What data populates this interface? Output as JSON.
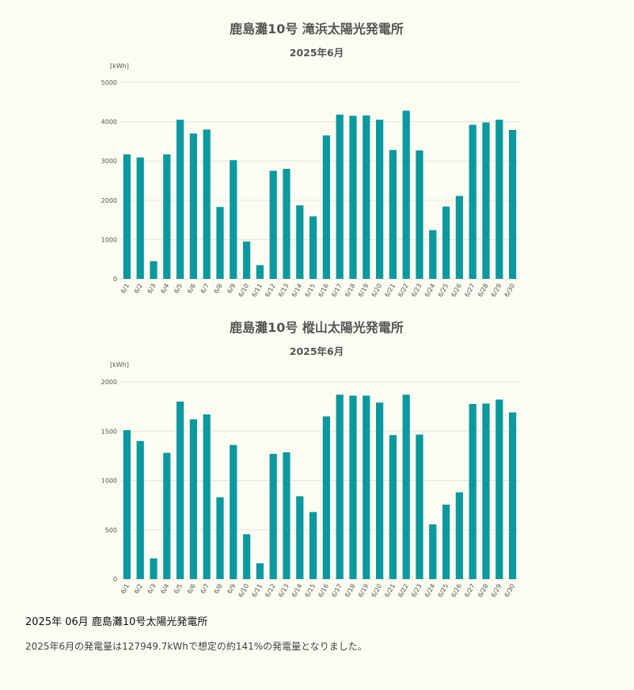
{
  "chart_data": [
    {
      "type": "bar",
      "title": "鹿島灘10号 滝浜太陽光発電所",
      "subtitle": "2025年6月",
      "unit_label": "[kWh]",
      "categories": [
        "6/1",
        "6/2",
        "6/3",
        "6/4",
        "6/5",
        "6/6",
        "6/7",
        "6/8",
        "6/9",
        "6/10",
        "6/11",
        "6/12",
        "6/13",
        "6/14",
        "6/15",
        "6/16",
        "6/17",
        "6/18",
        "6/19",
        "6/20",
        "6/21",
        "6/22",
        "6/23",
        "6/24",
        "6/25",
        "6/26",
        "6/27",
        "6/28",
        "6/29",
        "6/30"
      ],
      "values": [
        3170,
        3090,
        450,
        3170,
        4050,
        3700,
        3800,
        1830,
        3020,
        950,
        350,
        2750,
        2800,
        1870,
        1590,
        3650,
        4180,
        4150,
        4160,
        4050,
        3280,
        4280,
        3270,
        1240,
        1840,
        2110,
        3920,
        3980,
        4050,
        3790
      ],
      "ylim": [
        0,
        5000
      ],
      "yticks": [
        0,
        1000,
        2000,
        3000,
        4000,
        5000
      ],
      "grid": true,
      "color": "#0a999e"
    },
    {
      "type": "bar",
      "title": "鹿島灘10号 樅山太陽光発電所",
      "subtitle": "2025年6月",
      "unit_label": "[kWh]",
      "categories": [
        "6/1",
        "6/2",
        "6/3",
        "6/4",
        "6/5",
        "6/6",
        "6/7",
        "6/8",
        "6/9",
        "6/10",
        "6/11",
        "6/12",
        "6/13",
        "6/14",
        "6/15",
        "6/16",
        "6/17",
        "6/18",
        "6/19",
        "6/20",
        "6/21",
        "6/22",
        "6/23",
        "6/24",
        "6/25",
        "6/26",
        "6/27",
        "6/28",
        "6/29",
        "6/30"
      ],
      "values": [
        1510,
        1400,
        210,
        1280,
        1800,
        1620,
        1670,
        830,
        1360,
        455,
        160,
        1270,
        1285,
        840,
        680,
        1650,
        1870,
        1860,
        1860,
        1790,
        1460,
        1870,
        1465,
        555,
        755,
        880,
        1775,
        1780,
        1820,
        1690
      ],
      "ylim": [
        0,
        2000
      ],
      "yticks": [
        0,
        500,
        1000,
        1500,
        2000
      ],
      "grid": true,
      "color": "#0a999e"
    }
  ],
  "summary": {
    "heading": "2025年 06月  鹿島灘10号太陽光発電所",
    "text": "2025年6月の発電量は127949.7kWhで想定の約141%の発電量となりました。"
  }
}
